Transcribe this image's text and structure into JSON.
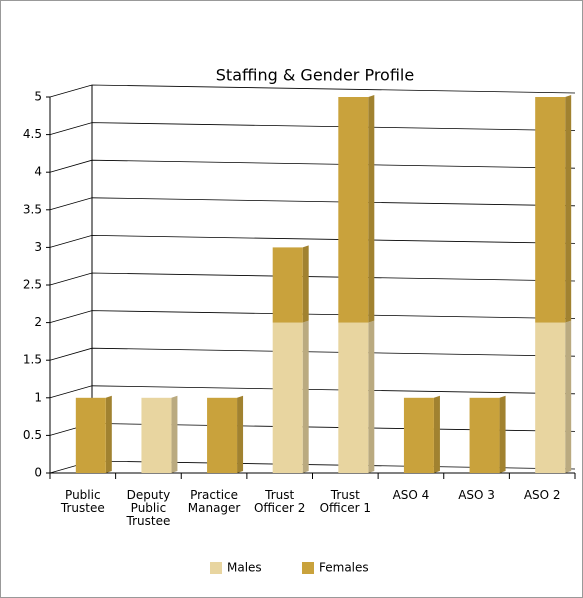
{
  "chart_data": {
    "type": "stacked-bar",
    "title": "Staffing & Gender Profile",
    "categories": [
      "Public Trustee",
      "Deputy Public Trustee",
      "Practice Manager",
      "Trust Officer 2",
      "Trust Officer 1",
      "ASO 4",
      "ASO 3",
      "ASO 2"
    ],
    "series": [
      {
        "name": "Males",
        "color": "#e8d5a0",
        "values": [
          0,
          1,
          0,
          2,
          2,
          0,
          0,
          2
        ]
      },
      {
        "name": "Females",
        "color": "#c9a23c",
        "values": [
          1,
          0,
          1,
          1,
          3,
          1,
          1,
          3
        ]
      }
    ],
    "ylim": [
      0,
      5
    ],
    "yticks": [
      0,
      0.5,
      1,
      1.5,
      2,
      2.5,
      3,
      3.5,
      4,
      4.5,
      5
    ],
    "grid": true,
    "legend": "bottom"
  }
}
